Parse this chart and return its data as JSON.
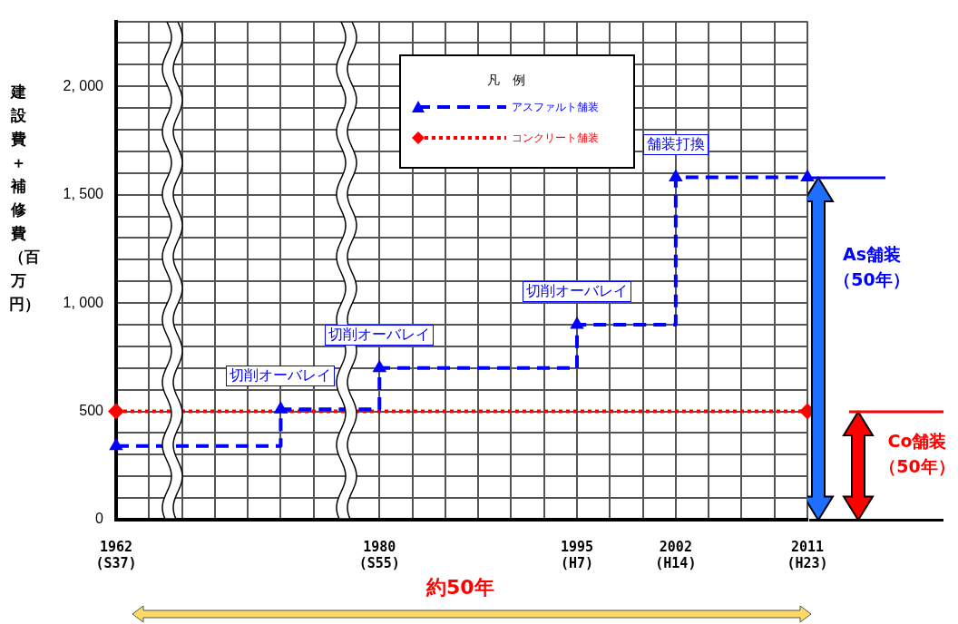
{
  "chart_data": {
    "type": "step",
    "ylabel": "建設費＋補修費（百万円）",
    "legend_title": "凡　例",
    "legend": "top",
    "categories": [
      "1962\n(S37)",
      null,
      null,
      null,
      null,
      null,
      null,
      null,
      "1980\n(S55)",
      null,
      null,
      null,
      null,
      null,
      "1995\n(H7)",
      null,
      null,
      "2002\n(H14)",
      null,
      null,
      null,
      "2011\n(H23)"
    ],
    "series": [
      {
        "name": "アスファルト舗装",
        "color": "#0000ff",
        "marker": "triangle",
        "line_style": "dashed",
        "values": [
          340,
          null,
          null,
          null,
          null,
          510,
          null,
          null,
          700,
          null,
          null,
          null,
          null,
          null,
          900,
          null,
          null,
          1580,
          null,
          null,
          null,
          1580
        ]
      },
      {
        "name": "コンクリート舗装",
        "color": "#ff0000",
        "marker": "diamond",
        "line_style": "dotted",
        "values": [
          500,
          null,
          null,
          null,
          null,
          null,
          null,
          null,
          null,
          null,
          null,
          null,
          null,
          null,
          null,
          null,
          null,
          null,
          null,
          null,
          null,
          500
        ]
      }
    ],
    "ylim": [
      0,
      2300
    ],
    "yticks": [
      0,
      {
        "value": 100,
        "label": null
      },
      {
        "value": 200,
        "label": null
      },
      {
        "value": 300,
        "label": null
      },
      {
        "value": 400,
        "label": null
      },
      500,
      {
        "value": 600,
        "label": null
      },
      {
        "value": 700,
        "label": null
      },
      {
        "value": 800,
        "label": null
      },
      {
        "value": 900,
        "label": null
      },
      {
        "value": 1000,
        "label": "1, 000"
      },
      {
        "value": 1100,
        "label": null
      },
      {
        "value": 1200,
        "label": null
      },
      {
        "value": 1300,
        "label": null
      },
      {
        "value": 1400,
        "label": null
      },
      {
        "value": 1500,
        "label": "1, 500"
      },
      {
        "value": 1600,
        "label": null
      },
      {
        "value": 1700,
        "label": null
      },
      {
        "value": 1800,
        "label": null
      },
      {
        "value": 1900,
        "label": null
      },
      {
        "value": 2000,
        "label": "2, 000"
      },
      {
        "value": 2100,
        "label": null
      },
      {
        "value": 2200,
        "label": null
      },
      {
        "value": 2300,
        "label": null
      }
    ],
    "grid": true,
    "annotations": [
      {
        "text": "切削オーバレイ",
        "y": 510
      },
      {
        "text": "切削オーバレイ",
        "y": 700
      },
      {
        "text": "切削オーバレイ",
        "y": 900
      },
      {
        "text": "舗装打換",
        "y": 1580
      },
      "As舗装（50年）",
      "Co舗装（50年）",
      "約50年"
    ]
  }
}
